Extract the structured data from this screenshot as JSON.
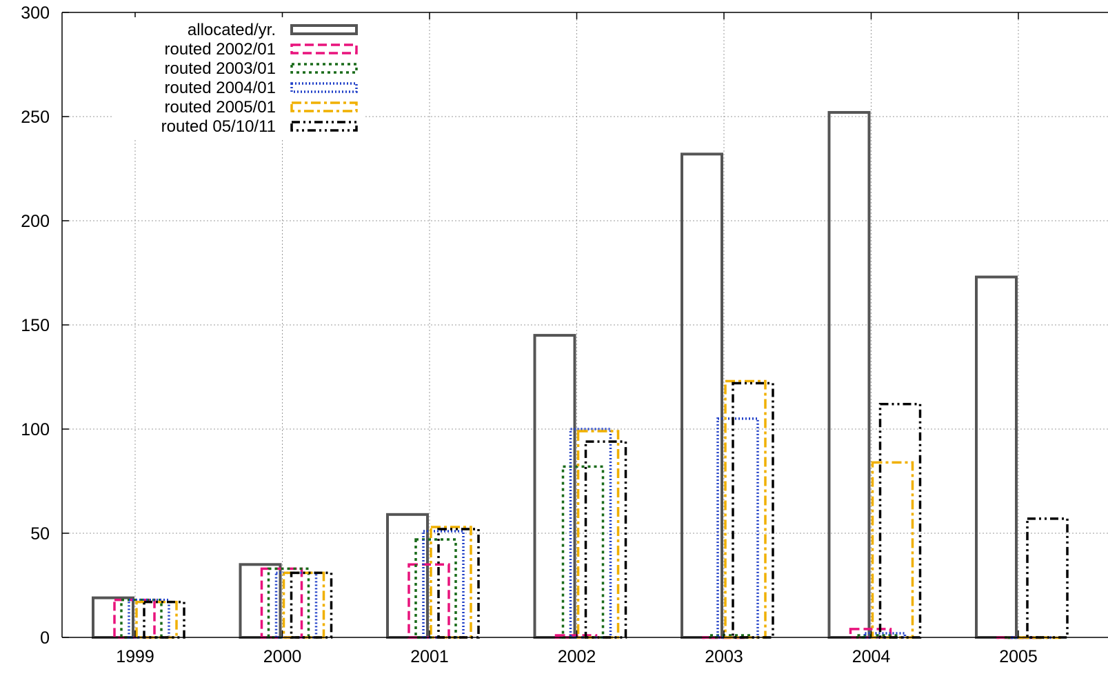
{
  "chart_data": {
    "type": "bar",
    "title": "",
    "xlabel": "",
    "ylabel": "",
    "ylim": [
      0,
      300
    ],
    "yticks": [
      0,
      50,
      100,
      150,
      200,
      250,
      300
    ],
    "grid": true,
    "legend_position": "top-left",
    "categories": [
      "1999",
      "2000",
      "2001",
      "2002",
      "2003",
      "2004",
      "2005"
    ],
    "series": [
      {
        "name": "allocated/yr.",
        "color": "#555555",
        "dash": "solid",
        "values": [
          19,
          35,
          59,
          145,
          232,
          252,
          173
        ]
      },
      {
        "name": "routed 2002/01",
        "color": "#e8137c",
        "dash": "dashed",
        "values": [
          18,
          33,
          35,
          1,
          0,
          4,
          0
        ]
      },
      {
        "name": "routed 2003/01",
        "color": "#1a6b1a",
        "dash": "dotted",
        "values": [
          18,
          33,
          47,
          82,
          1,
          1,
          0
        ]
      },
      {
        "name": "routed 2004/01",
        "color": "#1f3fc7",
        "dash": "dense-dotted",
        "values": [
          18,
          31,
          51,
          100,
          105,
          2,
          0
        ]
      },
      {
        "name": "routed 2005/01",
        "color": "#f0b000",
        "dash": "dash-dot",
        "values": [
          17,
          31,
          53,
          99,
          123,
          84,
          0
        ]
      },
      {
        "name": "routed 05/10/11",
        "color": "#000000",
        "dash": "dash-dot-dot",
        "values": [
          17,
          31,
          52,
          94,
          122,
          112,
          57
        ]
      }
    ]
  }
}
